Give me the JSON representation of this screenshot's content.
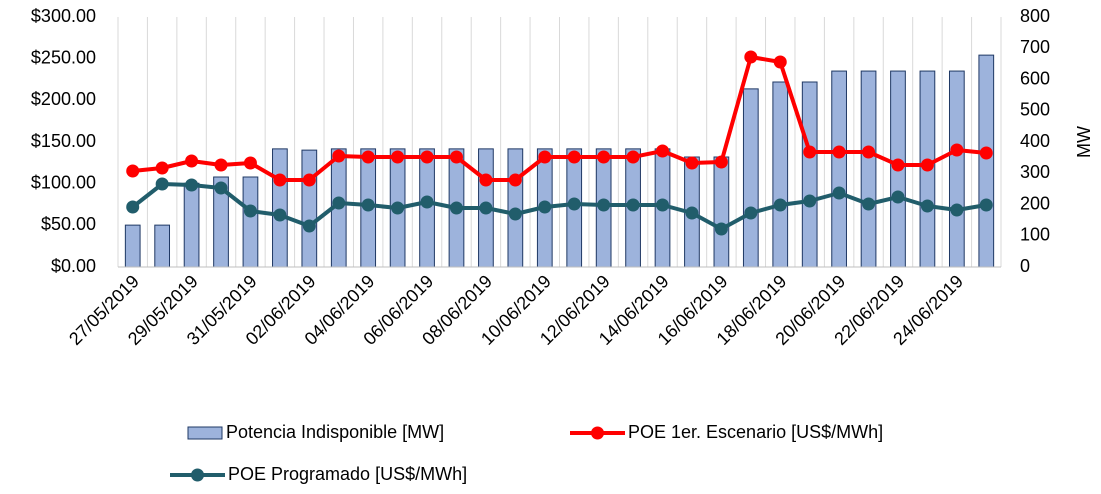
{
  "chart_data": {
    "type": "combo",
    "categories": [
      "27/05/2019",
      null,
      "29/05/2019",
      null,
      "31/05/2019",
      null,
      "02/06/2019",
      null,
      "04/06/2019",
      null,
      "06/06/2019",
      null,
      "08/06/2019",
      null,
      "10/06/2019",
      null,
      "12/06/2019",
      null,
      "14/06/2019",
      null,
      "16/06/2019",
      null,
      "18/06/2019",
      null,
      "20/06/2019",
      null,
      "22/06/2019",
      null,
      "24/06/2019",
      null
    ],
    "series": [
      {
        "name": "Potencia Indisponible [MW]",
        "type": "bar",
        "axis": "y2",
        "color": "#9db3dc",
        "edge": "#1f3864",
        "values": [
          134,
          134,
          268,
          288,
          288,
          378,
          374,
          378,
          378,
          378,
          378,
          378,
          378,
          378,
          378,
          378,
          378,
          378,
          378,
          352,
          352,
          570,
          592,
          592,
          627,
          627,
          627,
          627,
          627,
          678
        ]
      },
      {
        "name": "POE 1er. Escenario [US$/MWh]",
        "type": "line",
        "color": "#ff0000",
        "values": [
          115.2,
          118.8,
          127.2,
          122.4,
          124.8,
          104.4,
          104.4,
          133.2,
          132,
          132,
          132,
          132,
          104.4,
          104.4,
          132,
          132,
          132,
          132,
          139.2,
          124.8,
          126,
          252,
          246,
          138,
          138,
          138,
          122.4,
          122.4,
          140.4,
          136.8
        ]
      },
      {
        "name": "POE Programado [US$/MWh]",
        "type": "line",
        "color": "#215d6b",
        "values": [
          72,
          99.6,
          98.4,
          94.8,
          67.2,
          62.4,
          49.2,
          76.8,
          74.4,
          70.8,
          78,
          70.8,
          70.8,
          63.6,
          72,
          75.6,
          74.4,
          74.4,
          74.4,
          64.8,
          45.6,
          64.8,
          74.4,
          79.2,
          88.8,
          75.6,
          84,
          73.2,
          68.4,
          74.4
        ]
      }
    ],
    "ylim": [
      0,
      300
    ],
    "yticks": [
      {
        "value": 0,
        "label": "$0.00"
      },
      {
        "value": 50,
        "label": "$50.00"
      },
      {
        "value": 100,
        "label": "$100.00"
      },
      {
        "value": 150,
        "label": "$150.00"
      },
      {
        "value": 200,
        "label": "$200.00"
      },
      {
        "value": 250,
        "label": "$250.00"
      },
      {
        "value": 300,
        "label": "$300.00"
      }
    ],
    "y2lim": [
      0,
      800
    ],
    "y2ticks": [
      0,
      100,
      200,
      300,
      400,
      500,
      600,
      700,
      800
    ],
    "y2label": "MW",
    "grid": true
  }
}
